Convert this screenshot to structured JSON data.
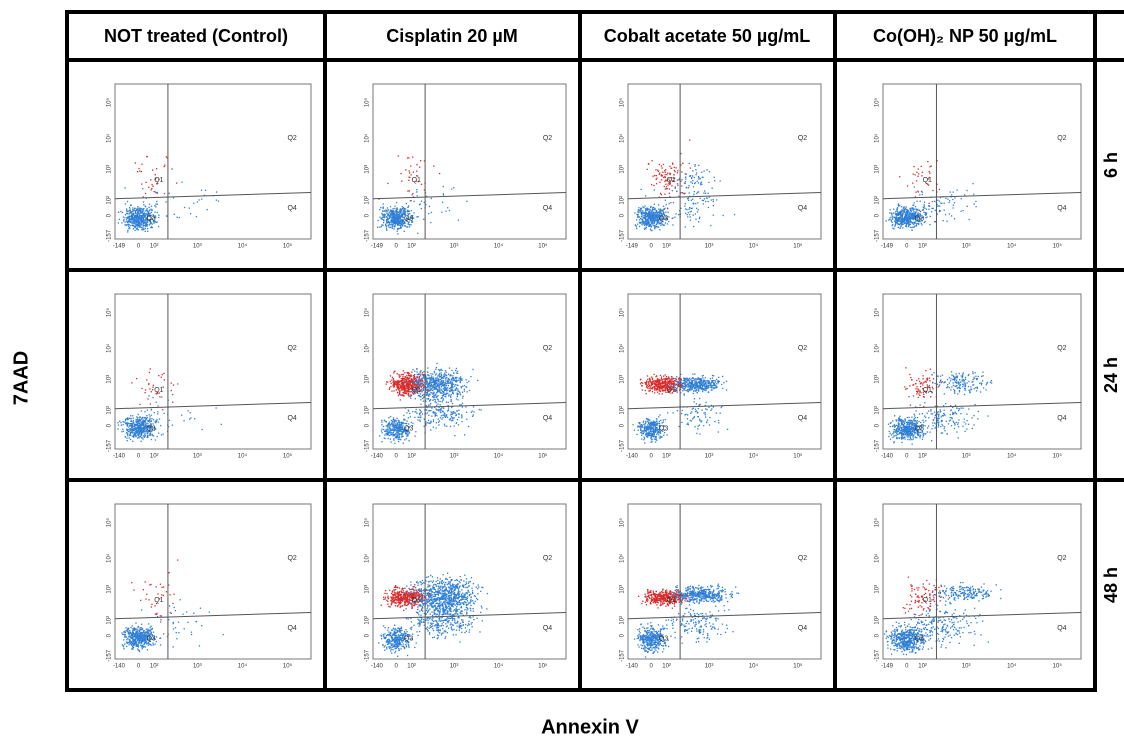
{
  "header": {
    "columns": [
      "NOT treated (Control)",
      "Cisplatin 20 µM",
      "Cobalt acetate 50 µg/mL",
      "Co(OH)₂ NP  50 µg/mL"
    ]
  },
  "rows": [
    "6 h",
    "24 h",
    "48 h"
  ],
  "y_axis_label": "7AAD",
  "x_axis_label": "Annexin V",
  "plot": {
    "x_ticks": [
      "0",
      "10²",
      "10³",
      "10⁴",
      "10⁵"
    ],
    "y_ticks": [
      "-157",
      "0",
      "10²",
      "10³",
      "10⁴",
      "10⁵"
    ],
    "quadrants": [
      "Q1",
      "Q2",
      "Q3",
      "Q4"
    ]
  },
  "x_min_labels": [
    [
      "-149",
      "-149",
      "-149",
      "-149"
    ],
    [
      "-140",
      "-140",
      "-140",
      "-140"
    ],
    [
      "-140",
      "-140",
      "-140",
      "-149"
    ]
  ]
}
